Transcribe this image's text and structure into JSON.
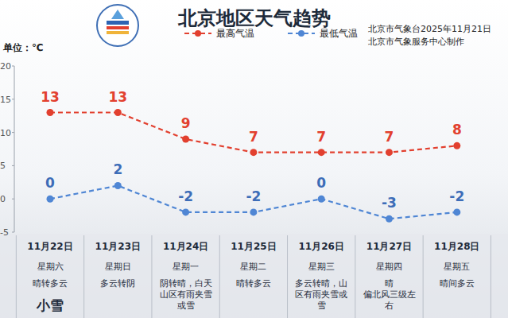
{
  "chart_data": {
    "type": "line",
    "title": "北京地区天气趋势",
    "y_axis_label": "单位：℃",
    "annotations": [
      "北京市气象台2025年11月21日",
      "北京市气象服务中心制作"
    ],
    "categories": [
      "11月22日",
      "11月23日",
      "11月24日",
      "11月25日",
      "11月26日",
      "11月27日",
      "11月28日"
    ],
    "weekdays": [
      "星期六",
      "星期日",
      "星期一",
      "星期二",
      "星期三",
      "星期四",
      "星期五"
    ],
    "weather": [
      [
        "晴转多云",
        "小雪"
      ],
      [
        "多云转阴"
      ],
      [
        "阴转晴，白天",
        "山区有雨夹雪",
        "或雪"
      ],
      [
        "晴转多云"
      ],
      [
        "多云转晴，山",
        "区有雨夹雪或",
        "雪"
      ],
      [
        "晴",
        "偏北风三级左",
        "右"
      ],
      [
        "晴间多云"
      ]
    ],
    "series": [
      {
        "name": "最高气温",
        "color": "#e2402f",
        "values": [
          13,
          13,
          9,
          7,
          7,
          7,
          8
        ]
      },
      {
        "name": "最低气温",
        "color": "#4f86d4",
        "values": [
          0,
          2,
          -2,
          -2,
          0,
          -3,
          -2
        ]
      }
    ],
    "ylim": [
      -5,
      20
    ],
    "yticks": [
      -5,
      0,
      5,
      10,
      15,
      20
    ],
    "grid": false,
    "legend": "top",
    "data_labels": true,
    "line_style": "dashed",
    "marker": "circle"
  }
}
